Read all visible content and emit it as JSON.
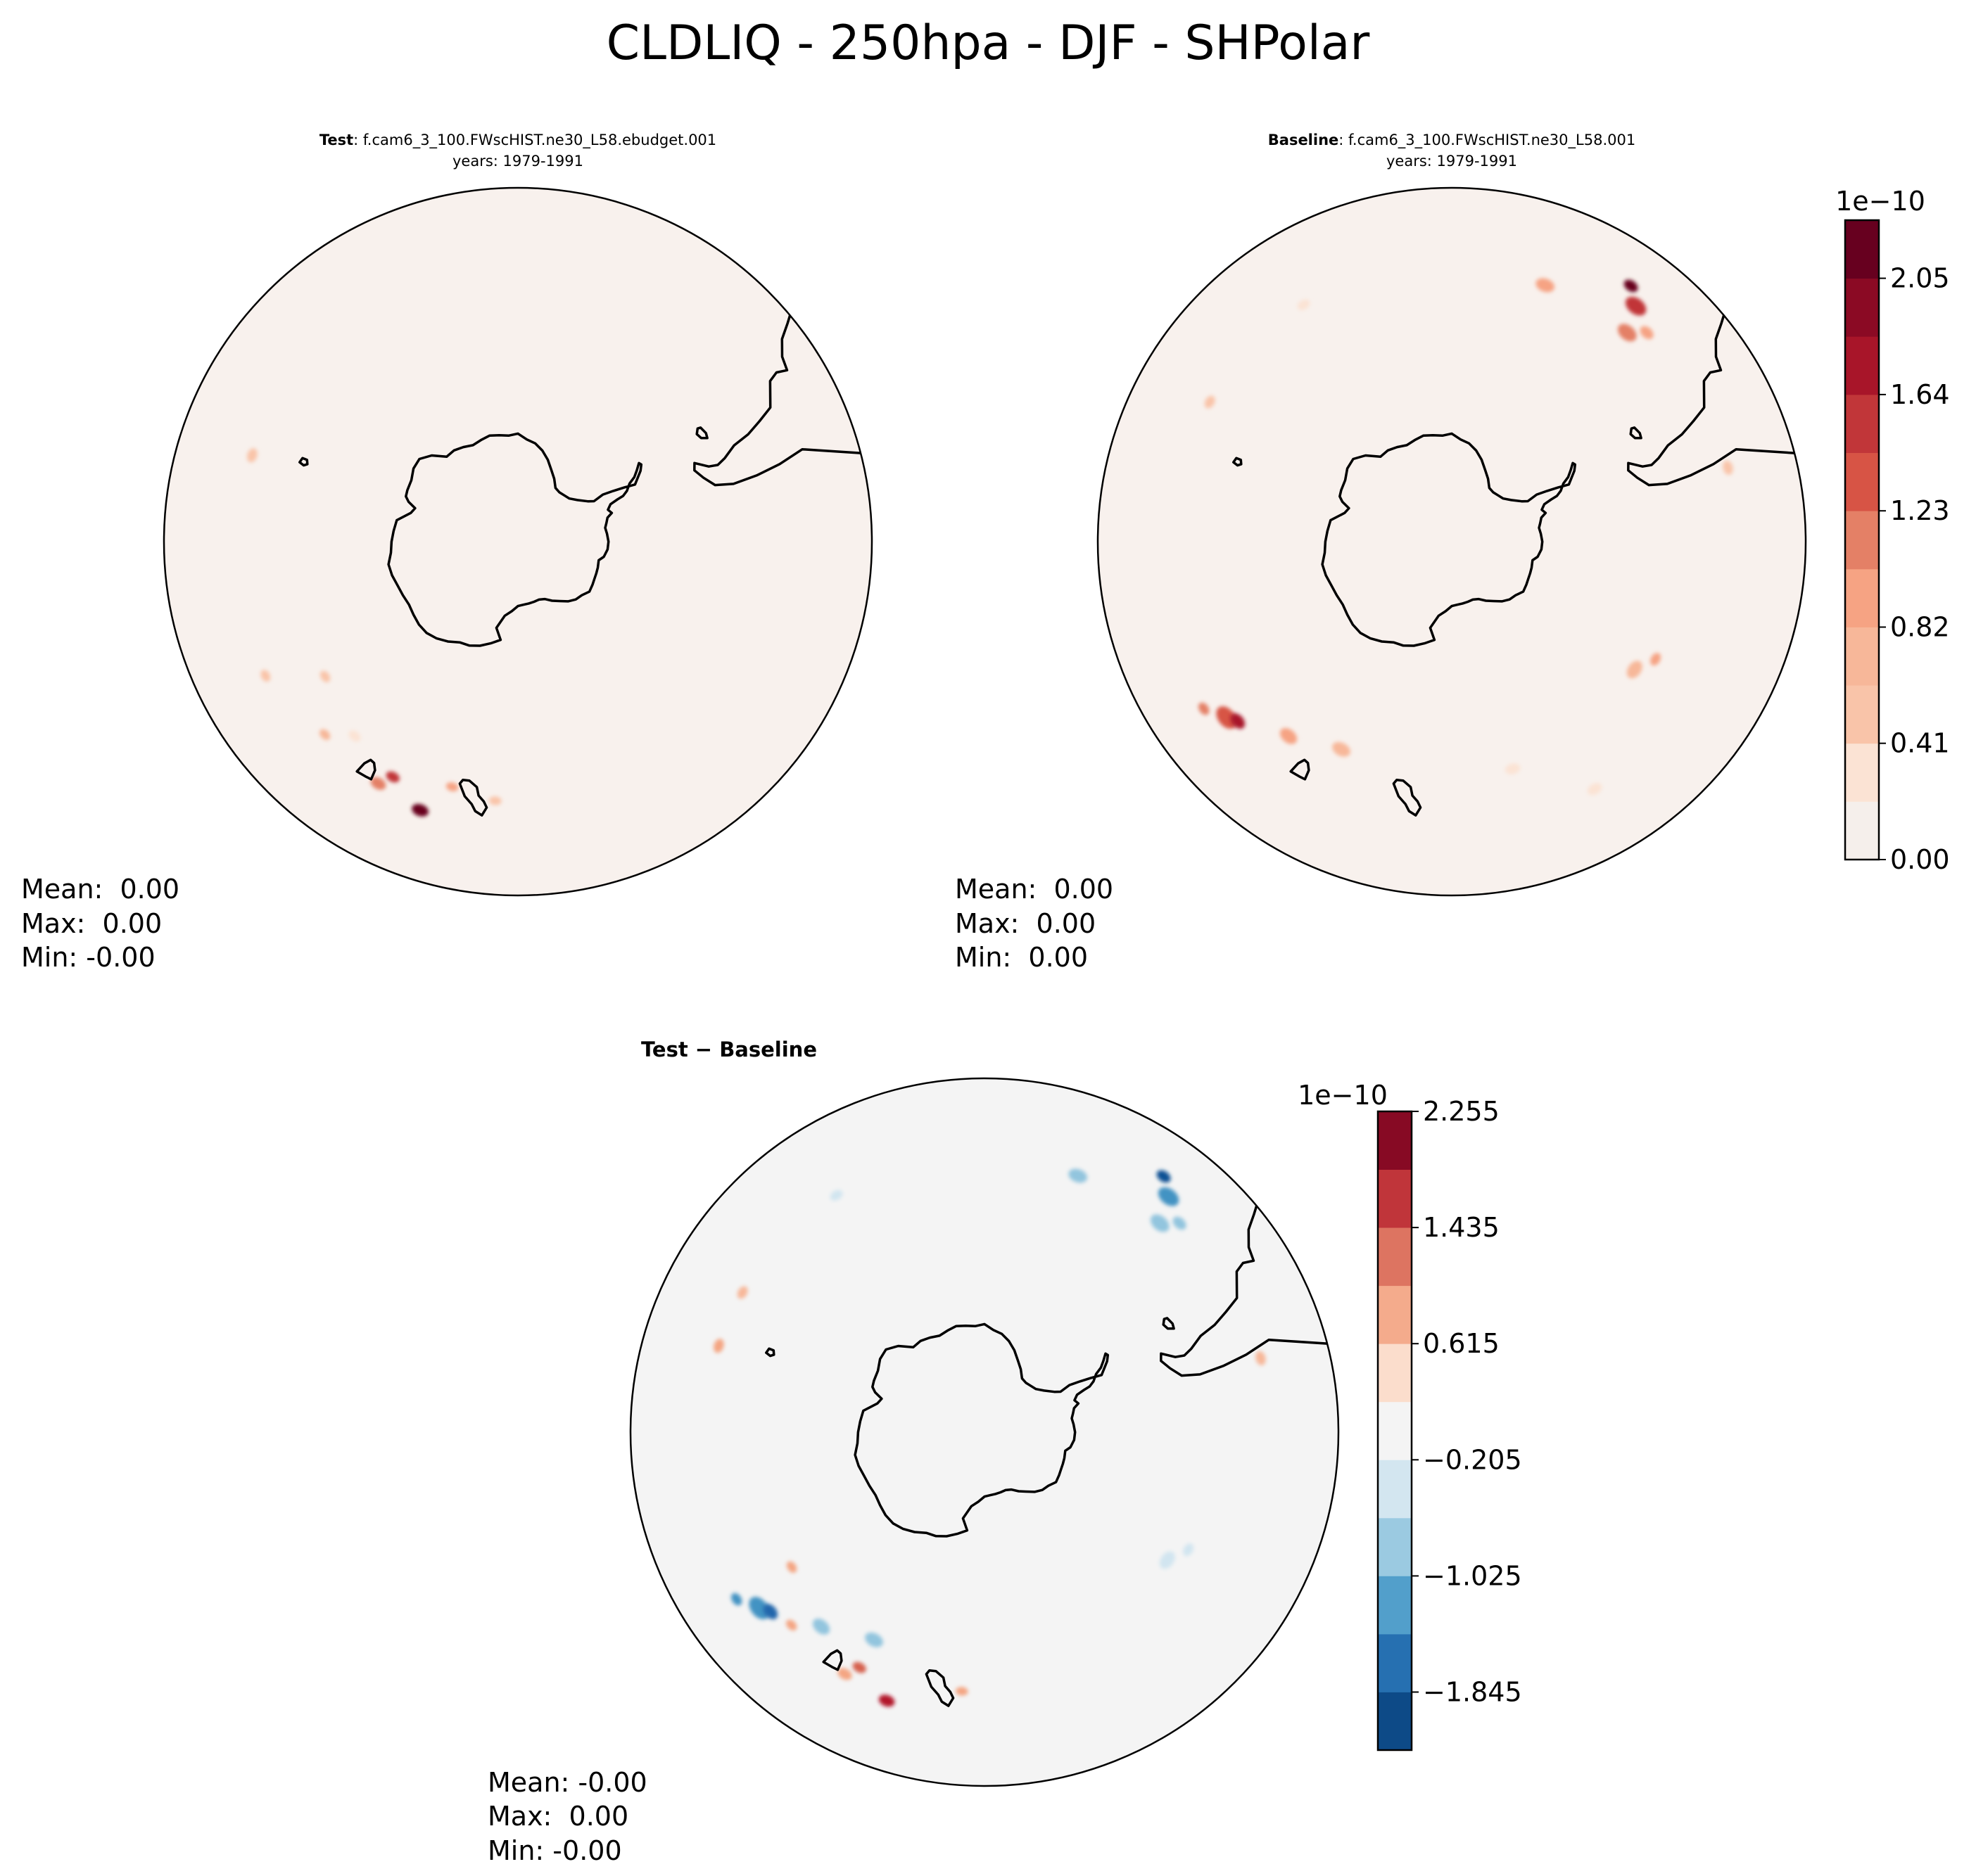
{
  "figure": {
    "title": "CLDLIQ - 250hpa - DJF - SHPolar"
  },
  "panels": [
    {
      "id": "test",
      "label_bold": "Test",
      "label_rest": ": f.cam6_3_100.FWscHIST.ne30_L58.ebudget.001",
      "years": "years: 1979-1991",
      "stats": [
        "Mean:  0.00",
        "Max:  0.00",
        "Min: -0.00"
      ],
      "background_color": "#f8f1ed",
      "blobs": [
        {
          "lon": 150,
          "lat": -41,
          "r": 0.55,
          "color": "#e48066"
        },
        {
          "lon": 152,
          "lat": -43,
          "r": 0.45,
          "color": "#c13639"
        },
        {
          "lon": 160,
          "lat": -40,
          "r": 0.6,
          "color": "#67001f"
        },
        {
          "lon": 140,
          "lat": -45,
          "r": 0.4,
          "color": "#fbe3d4"
        },
        {
          "lon": 135,
          "lat": -42,
          "r": 0.35,
          "color": "#f7b799"
        },
        {
          "lon": 165,
          "lat": -45,
          "r": 0.35,
          "color": "#f6a383"
        },
        {
          "lon": 125,
          "lat": -48,
          "r": 0.35,
          "color": "#f9c4a9"
        },
        {
          "lon": 118,
          "lat": -40,
          "r": 0.35,
          "color": "#f9c4a9"
        },
        {
          "lon": 72,
          "lat": -41,
          "r": 0.45,
          "color": "#f9c4a9"
        },
        {
          "lon": 175,
          "lat": -44,
          "r": 0.35,
          "color": "#f9c4a9"
        }
      ]
    },
    {
      "id": "baseline",
      "label_bold": "Baseline",
      "label_rest": ": f.cam6_3_100.FWscHIST.ne30_L58.001",
      "years": "years: 1979-1991",
      "stats": [
        "Mean:  0.00",
        "Max:  0.00",
        "Min:  0.00"
      ],
      "background_color": "#f8f1ed",
      "blobs": [
        {
          "lon": -38,
          "lat": -38,
          "r": 0.9,
          "color": "#c13639"
        },
        {
          "lon": -40,
          "lat": -42,
          "r": 0.8,
          "color": "#e48066"
        },
        {
          "lon": -35,
          "lat": -36,
          "r": 0.5,
          "color": "#67001f"
        },
        {
          "lon": -20,
          "lat": -42,
          "r": 0.7,
          "color": "#f6a383"
        },
        {
          "lon": -43,
          "lat": -40,
          "r": 0.5,
          "color": "#f6a383"
        },
        {
          "lon": 32,
          "lat": -41,
          "r": 0.4,
          "color": "#fbe3d4"
        },
        {
          "lon": 60,
          "lat": -41,
          "r": 0.4,
          "color": "#f9c4a9"
        },
        {
          "lon": 128,
          "lat": -40,
          "r": 1.0,
          "color": "#d75445"
        },
        {
          "lon": 130,
          "lat": -41,
          "r": 0.6,
          "color": "#a81529"
        },
        {
          "lon": 140,
          "lat": -45,
          "r": 0.7,
          "color": "#f6a383"
        },
        {
          "lon": 152,
          "lat": -48,
          "r": 0.7,
          "color": "#f7b799"
        },
        {
          "lon": 124,
          "lat": -38,
          "r": 0.4,
          "color": "#e48066"
        },
        {
          "lon": -120,
          "lat": -48,
          "r": 0.4,
          "color": "#f6a383"
        },
        {
          "lon": -125,
          "lat": -50,
          "r": 0.7,
          "color": "#f7b799"
        },
        {
          "lon": -165,
          "lat": -48,
          "r": 0.5,
          "color": "#fbe3d4"
        },
        {
          "lon": -150,
          "lat": -40,
          "r": 0.5,
          "color": "#fbe3d4"
        },
        {
          "lon": -75,
          "lat": -40,
          "r": 0.45,
          "color": "#f9c4a9"
        }
      ]
    },
    {
      "id": "diff",
      "label_bold": "Test − Baseline",
      "label_rest": "",
      "years": "",
      "stats": [
        "Mean: -0.00",
        "Max:  0.00",
        "Min: -0.00"
      ],
      "background_color": "#f4f4f4",
      "blobs": [
        {
          "lon": -38,
          "lat": -38,
          "r": 0.9,
          "color": "#4393c3"
        },
        {
          "lon": -40,
          "lat": -42,
          "r": 0.8,
          "color": "#92c5de"
        },
        {
          "lon": -35,
          "lat": -36,
          "r": 0.5,
          "color": "#0b5194"
        },
        {
          "lon": -20,
          "lat": -42,
          "r": 0.7,
          "color": "#92c5de"
        },
        {
          "lon": -43,
          "lat": -40,
          "r": 0.5,
          "color": "#92c5de"
        },
        {
          "lon": 32,
          "lat": -41,
          "r": 0.4,
          "color": "#d1e5f0"
        },
        {
          "lon": 60,
          "lat": -41,
          "r": 0.4,
          "color": "#f7b799"
        },
        {
          "lon": 128,
          "lat": -40,
          "r": 1.0,
          "color": "#4393c3"
        },
        {
          "lon": 130,
          "lat": -41,
          "r": 0.6,
          "color": "#2166ac"
        },
        {
          "lon": 140,
          "lat": -45,
          "r": 0.7,
          "color": "#92c5de"
        },
        {
          "lon": 152,
          "lat": -48,
          "r": 0.7,
          "color": "#92c5de"
        },
        {
          "lon": 124,
          "lat": -38,
          "r": 0.4,
          "color": "#4393c3"
        },
        {
          "lon": -120,
          "lat": -48,
          "r": 0.4,
          "color": "#d1e5f0"
        },
        {
          "lon": -125,
          "lat": -50,
          "r": 0.7,
          "color": "#d1e5f0"
        },
        {
          "lon": -75,
          "lat": -40,
          "r": 0.45,
          "color": "#f7b799"
        },
        {
          "lon": 150,
          "lat": -41,
          "r": 0.5,
          "color": "#f4a582"
        },
        {
          "lon": 160,
          "lat": -40,
          "r": 0.55,
          "color": "#b2182b"
        },
        {
          "lon": 152,
          "lat": -43,
          "r": 0.45,
          "color": "#d6604d"
        },
        {
          "lon": 125,
          "lat": -48,
          "r": 0.35,
          "color": "#f4a582"
        },
        {
          "lon": 135,
          "lat": -42,
          "r": 0.35,
          "color": "#f4a582"
        },
        {
          "lon": 175,
          "lat": -44,
          "r": 0.35,
          "color": "#f4a582"
        },
        {
          "lon": 72,
          "lat": -41,
          "r": 0.45,
          "color": "#f4a582"
        }
      ]
    }
  ],
  "colorbars": [
    {
      "id": "colorbar-fields",
      "exponent": "1e−10",
      "ticks": [
        {
          "value": 0.0,
          "label": "0.00"
        },
        {
          "value": 0.41,
          "label": "0.41"
        },
        {
          "value": 0.82,
          "label": "0.82"
        },
        {
          "value": 1.23,
          "label": "1.23"
        },
        {
          "value": 1.64,
          "label": "1.64"
        },
        {
          "value": 2.05,
          "label": "2.05"
        }
      ],
      "range": [
        0.0,
        2.255
      ],
      "colors": [
        "#f5efeb",
        "#fbe3d4",
        "#f9c4a9",
        "#f7b799",
        "#f6a383",
        "#e48066",
        "#d75445",
        "#c13639",
        "#a81529",
        "#8b0a24",
        "#67001f"
      ]
    },
    {
      "id": "colorbar-diff",
      "exponent": "1e−10",
      "ticks": [
        {
          "value": 2.255,
          "label": "2.255"
        },
        {
          "value": 1.435,
          "label": "1.435"
        },
        {
          "value": 0.615,
          "label": "0.615"
        },
        {
          "value": -0.205,
          "label": "−0.205"
        },
        {
          "value": -1.025,
          "label": "−1.025"
        },
        {
          "value": -1.845,
          "label": "−1.845"
        }
      ],
      "range": [
        -2.255,
        2.255
      ],
      "colors": [
        "#0d4a87",
        "#2670b1",
        "#529fcb",
        "#9bcae1",
        "#d3e6f0",
        "#f4f4f4",
        "#fbddcc",
        "#f4ab8c",
        "#dd7461",
        "#c0353a",
        "#870a24"
      ]
    }
  ]
}
